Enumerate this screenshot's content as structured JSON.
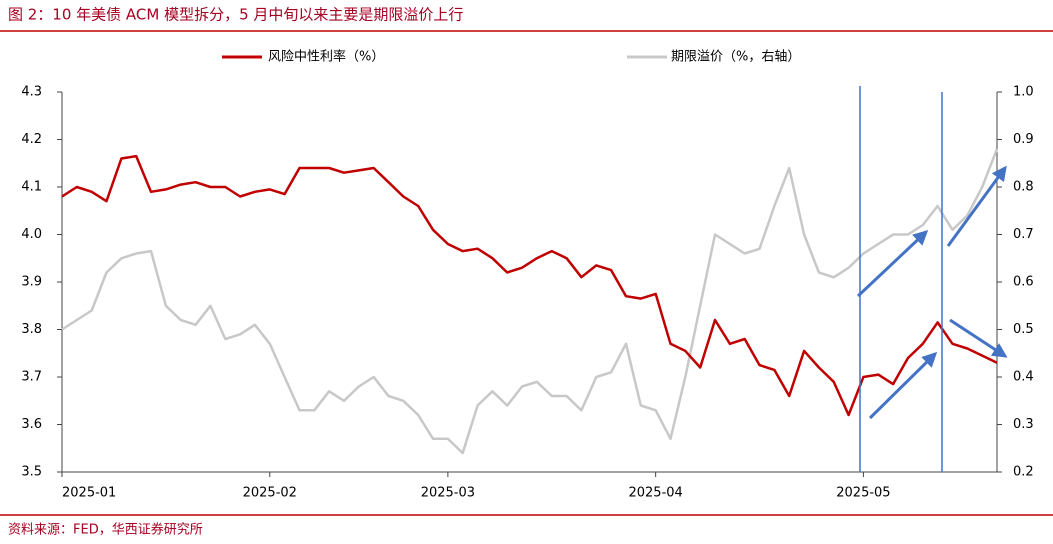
{
  "chart_data": {
    "type": "line",
    "title": "图 2：10 年美债 ACM 模型拆分，5 月中旬以来主要是期限溢价上行",
    "source": "资料来源：FED，华西证券研究所",
    "categories": [
      "2025-01",
      null,
      null,
      null,
      null,
      null,
      null,
      null,
      null,
      null,
      null,
      null,
      null,
      null,
      "2025-02",
      null,
      null,
      null,
      null,
      null,
      null,
      null,
      null,
      null,
      null,
      null,
      "2025-03",
      null,
      null,
      null,
      null,
      null,
      null,
      null,
      null,
      null,
      null,
      null,
      null,
      null,
      "2025-04",
      null,
      null,
      null,
      null,
      null,
      null,
      null,
      null,
      null,
      null,
      null,
      null,
      null,
      "2025-05",
      null,
      null,
      null,
      null,
      null,
      null,
      null,
      null,
      null
    ],
    "series": [
      {
        "name": "风险中性利率（%）",
        "color": "#c00000",
        "axis": "y",
        "values": [
          4.08,
          4.1,
          4.09,
          4.07,
          4.16,
          4.165,
          4.09,
          4.095,
          4.105,
          4.11,
          4.1,
          4.1,
          4.08,
          4.09,
          4.095,
          4.085,
          4.14,
          4.14,
          4.14,
          4.13,
          4.135,
          4.14,
          4.11,
          4.08,
          4.06,
          4.01,
          3.98,
          3.965,
          3.97,
          3.95,
          3.92,
          3.93,
          3.95,
          3.965,
          3.95,
          3.91,
          3.935,
          3.925,
          3.87,
          3.865,
          3.875,
          3.77,
          3.755,
          3.72,
          3.82,
          3.77,
          3.78,
          3.725,
          3.715,
          3.66,
          3.755,
          3.72,
          3.69,
          3.62,
          3.7,
          3.705,
          3.685,
          3.74,
          3.77,
          3.815,
          3.77,
          3.76,
          3.745,
          3.73
        ]
      },
      {
        "name": "期限溢价（%，右轴）",
        "color": "#c8c8c8",
        "axis": "y2",
        "values": [
          0.5,
          0.52,
          0.54,
          0.62,
          0.65,
          0.66,
          0.665,
          0.55,
          0.52,
          0.51,
          0.55,
          0.48,
          0.49,
          0.51,
          0.47,
          0.4,
          0.33,
          0.33,
          0.37,
          0.35,
          0.38,
          0.4,
          0.36,
          0.35,
          0.32,
          0.27,
          0.27,
          0.24,
          0.34,
          0.37,
          0.34,
          0.38,
          0.39,
          0.36,
          0.36,
          0.33,
          0.4,
          0.41,
          0.47,
          0.34,
          0.33,
          0.27,
          0.4,
          0.55,
          0.7,
          0.68,
          0.66,
          0.67,
          0.76,
          0.84,
          0.7,
          0.62,
          0.61,
          0.63,
          0.66,
          0.68,
          0.7,
          0.7,
          0.72,
          0.76,
          0.71,
          0.74,
          0.8,
          0.88
        ]
      }
    ],
    "ylim": [
      3.5,
      4.3
    ],
    "yticks": [
      3.5,
      3.6,
      3.7,
      3.8,
      3.9,
      {
        "value": 4,
        "label": "4.0"
      },
      4.1,
      4.2,
      4.3
    ],
    "y2lim": [
      0.2,
      1.0
    ],
    "y2ticks": [
      0.2,
      0.3,
      0.4,
      0.5,
      0.6,
      0.7,
      0.8,
      0.9,
      {
        "value": 1,
        "label": "1.0"
      }
    ],
    "grid": false,
    "legend": "top"
  }
}
